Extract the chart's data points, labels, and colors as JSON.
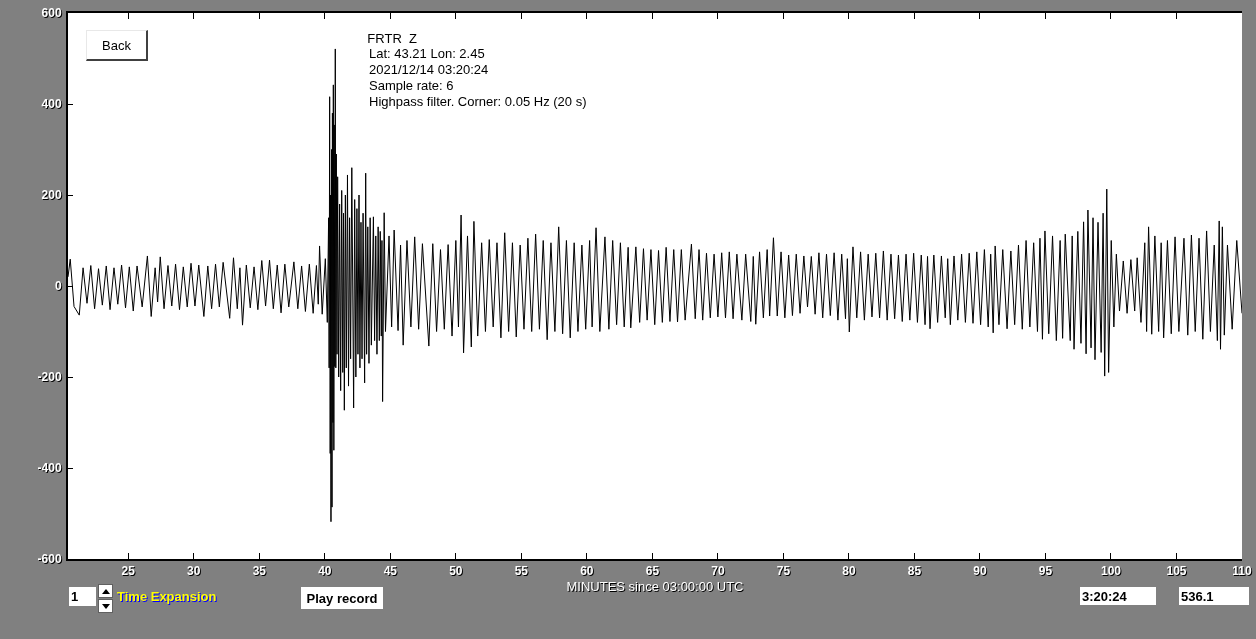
{
  "chart_data": {
    "type": "line",
    "title": "FRTR  Z",
    "annotations": [
      "Lat: 43.21 Lon: 2.45",
      "2021/12/14 03:20:24",
      "Sample rate: 6",
      "Highpass filter. Corner: 0.05 Hz (20 s)",
      "Back",
      "1",
      "Time Expansion",
      "Play record",
      "3:20:24",
      "536.1"
    ],
    "xlabel": "MINUTES since 03:00:00 UTC",
    "color": "#000000",
    "xlim": [
      20.4,
      110
    ],
    "ylim": [
      -600,
      600
    ],
    "xticks": [
      25,
      30,
      35,
      40,
      45,
      50,
      55,
      60,
      65,
      70,
      75,
      80,
      85,
      90,
      95,
      100,
      105,
      110
    ],
    "yticks": [
      -600,
      -400,
      -200,
      0,
      200,
      400,
      600
    ],
    "x": [
      20.4,
      20.57,
      20.86,
      21.26,
      21.55,
      21.85,
      22.14,
      22.43,
      22.73,
      23.02,
      23.32,
      23.61,
      23.91,
      24.2,
      24.49,
      24.79,
      25.08,
      25.38,
      25.67,
      26.06,
      26.46,
      26.75,
      27.05,
      27.24,
      27.44,
      27.73,
      28.03,
      28.32,
      28.61,
      28.91,
      29.2,
      29.5,
      29.79,
      30.09,
      30.38,
      30.77,
      31.07,
      31.36,
      31.66,
      31.95,
      32.24,
      32.74,
      33.03,
      33.32,
      33.52,
      33.72,
      34.01,
      34.31,
      34.6,
      34.89,
      35.19,
      35.48,
      35.78,
      36.07,
      36.37,
      36.66,
      36.95,
      37.25,
      37.64,
      37.94,
      38.23,
      38.52,
      38.82,
      39.11,
      39.36,
      39.5,
      39.6,
      39.8,
      40.04,
      40.19,
      40.29,
      40.33,
      40.37,
      40.41,
      40.44,
      40.47,
      40.51,
      40.55,
      40.58,
      40.62,
      40.65,
      40.69,
      40.72,
      40.76,
      40.8,
      40.84,
      40.88,
      40.93,
      40.98,
      41.06,
      41.13,
      41.21,
      41.29,
      41.37,
      41.43,
      41.49,
      41.57,
      41.64,
      41.73,
      41.81,
      41.89,
      41.97,
      42.06,
      42.2,
      42.28,
      42.37,
      42.45,
      42.53,
      42.61,
      42.68,
      42.76,
      42.84,
      42.92,
      43.04,
      43.12,
      43.19,
      43.28,
      43.37,
      43.46,
      43.55,
      43.71,
      43.8,
      43.89,
      43.98,
      44.07,
      44.16,
      44.23,
      44.31,
      44.36,
      44.41,
      44.53,
      44.63,
      44.9,
      45.1,
      45.29,
      45.59,
      45.78,
      45.98,
      46.27,
      46.57,
      46.86,
      47.16,
      47.45,
      47.94,
      48.24,
      48.53,
      48.83,
      49.12,
      49.41,
      49.71,
      50.0,
      50.2,
      50.4,
      50.59,
      50.89,
      51.18,
      51.38,
      51.67,
      51.97,
      52.26,
      52.55,
      52.85,
      53.14,
      53.44,
      53.73,
      54.03,
      54.32,
      54.61,
      54.91,
      55.2,
      55.5,
      55.79,
      56.09,
      56.38,
      56.67,
      56.97,
      57.26,
      57.56,
      57.85,
      58.15,
      58.44,
      58.73,
      59.03,
      59.32,
      59.62,
      59.91,
      60.21,
      60.4,
      60.7,
      60.99,
      61.38,
      61.68,
      61.97,
      62.27,
      62.56,
      62.85,
      63.15,
      63.35,
      63.74,
      64.03,
      64.32,
      64.6,
      64.89,
      65.18,
      65.47,
      65.76,
      66.05,
      66.34,
      66.63,
      66.92,
      67.21,
      67.5,
      67.98,
      68.27,
      68.56,
      68.84,
      69.13,
      69.42,
      69.71,
      70.0,
      70.29,
      70.58,
      70.87,
      71.16,
      71.45,
      71.83,
      72.12,
      72.51,
      72.7,
      72.89,
      73.18,
      73.47,
      73.76,
      73.95,
      74.24,
      74.53,
      74.82,
      75.11,
      75.4,
      75.69,
      75.98,
      76.27,
      76.56,
      76.84,
      77.13,
      77.42,
      77.71,
      78.0,
      78.29,
      78.58,
      78.87,
      79.16,
      79.45,
      79.74,
      79.88,
      80.03,
      80.31,
      80.6,
      80.89,
      81.18,
      81.47,
      81.76,
      82.05,
      82.34,
      82.63,
      82.92,
      83.21,
      83.49,
      83.78,
      84.07,
      84.36,
      84.65,
      84.94,
      85.23,
      85.52,
      85.81,
      86.0,
      86.19,
      86.48,
      86.77,
      87.06,
      87.35,
      87.54,
      87.74,
      88.02,
      88.31,
      88.6,
      88.89,
      89.18,
      89.47,
      89.76,
      90.05,
      90.34,
      90.63,
      90.82,
      91.01,
      91.16,
      91.45,
      91.74,
      92.07,
      92.36,
      92.65,
      92.94,
      93.23,
      93.52,
      93.81,
      94.1,
      94.39,
      94.58,
      94.77,
      94.96,
      95.25,
      95.54,
      95.83,
      96.12,
      96.31,
      96.51,
      96.89,
      97.04,
      97.18,
      97.47,
      97.71,
      97.91,
      98.1,
      98.24,
      98.48,
      98.63,
      98.78,
      99.01,
      99.25,
      99.4,
      99.52,
      99.68,
      99.82,
      100.02,
      100.22,
      100.41,
      100.65,
      100.94,
      101.23,
      101.52,
      101.81,
      102.0,
      102.29,
      102.58,
      102.72,
      102.87,
      103.11,
      103.35,
      103.64,
      103.83,
      104.02,
      104.31,
      104.6,
      104.89,
      105.18,
      105.57,
      105.86,
      106.14,
      106.43,
      106.72,
      107.01,
      107.3,
      107.59,
      107.88,
      108.12,
      108.26,
      108.36,
      108.5,
      108.65,
      108.89,
      109.25,
      109.6,
      110.0
    ],
    "values": [
      20,
      59,
      -45,
      -64,
      40,
      -38,
      45,
      -50,
      38,
      -42,
      44,
      -52,
      40,
      -40,
      46,
      -48,
      42,
      -55,
      44,
      -46,
      66,
      -67,
      40,
      -35,
      64,
      -50,
      45,
      -44,
      48,
      -52,
      42,
      -46,
      50,
      -44,
      46,
      -67,
      44,
      -50,
      48,
      -46,
      52,
      -71,
      62,
      -50,
      40,
      -86,
      46,
      -48,
      42,
      -52,
      56,
      -44,
      57,
      -50,
      46,
      -59,
      48,
      -46,
      53,
      -50,
      44,
      -56,
      48,
      -60,
      45,
      -40,
      88,
      -62,
      60,
      -80,
      150,
      -180,
      416,
      -368,
      200,
      -518,
      300,
      -486,
      380,
      -300,
      442,
      -361,
      354,
      -177,
      521,
      -180,
      290,
      -150,
      240,
      -200,
      180,
      -230,
      210,
      -190,
      160,
      -273,
      200,
      -180,
      244,
      -220,
      150,
      -160,
      260,
      -268,
      190,
      -200,
      170,
      -150,
      200,
      -180,
      140,
      -160,
      160,
      -213,
      248,
      -150,
      130,
      -170,
      150,
      -130,
      152,
      -120,
      110,
      -150,
      130,
      -120,
      120,
      -110,
      100,
      -254,
      161,
      -100,
      110,
      -90,
      123,
      -98,
      90,
      -130,
      100,
      -90,
      108,
      -95,
      93,
      -132,
      93,
      -100,
      80,
      -95,
      91,
      -110,
      100,
      -90,
      156,
      -147,
      110,
      -134,
      142,
      -110,
      95,
      -100,
      102,
      -90,
      95,
      -114,
      117,
      -100,
      95,
      -112,
      90,
      -95,
      105,
      -100,
      114,
      -95,
      100,
      -118,
      95,
      -100,
      130,
      -105,
      100,
      -114,
      95,
      -100,
      90,
      -95,
      100,
      -90,
      128,
      -100,
      108,
      -95,
      100,
      -85,
      95,
      -90,
      85,
      -92,
      86,
      -80,
      82,
      -75,
      80,
      -85,
      78,
      -80,
      85,
      -78,
      80,
      -79,
      80,
      -75,
      92,
      -72,
      80,
      -75,
      72,
      -70,
      70,
      -68,
      73,
      -70,
      75,
      -72,
      70,
      -75,
      70,
      -78,
      65,
      -84,
      75,
      -70,
      80,
      -66,
      106,
      -66,
      75,
      -70,
      68,
      -65,
      70,
      -60,
      66,
      -46,
      65,
      -62,
      73,
      -70,
      70,
      -65,
      73,
      -75,
      70,
      -72,
      60,
      -101,
      86,
      -70,
      75,
      -75,
      70,
      -68,
      72,
      -70,
      77,
      -75,
      70,
      -72,
      68,
      -78,
      70,
      -75,
      72,
      -80,
      68,
      -85,
      65,
      -94,
      68,
      -80,
      66,
      -70,
      60,
      -85,
      66,
      -75,
      70,
      -80,
      72,
      -82,
      75,
      -85,
      80,
      -90,
      70,
      -103,
      88,
      -85,
      80,
      -94,
      77,
      -85,
      90,
      -95,
      100,
      -90,
      95,
      -100,
      105,
      -117,
      121,
      -105,
      110,
      -120,
      100,
      -115,
      114,
      -120,
      110,
      -139,
      120,
      -126,
      141,
      -149,
      167,
      -136,
      150,
      -162,
      140,
      -146,
      160,
      -198,
      213,
      -190,
      100,
      -90,
      70,
      -55,
      55,
      -60,
      58,
      -55,
      62,
      -80,
      95,
      -100,
      130,
      -106,
      110,
      -100,
      95,
      -114,
      100,
      -105,
      108,
      -100,
      105,
      -108,
      112,
      -100,
      105,
      -117,
      121,
      -100,
      90,
      -120,
      143,
      -139,
      130,
      -108,
      90,
      -95,
      100,
      -60
    ]
  }
}
